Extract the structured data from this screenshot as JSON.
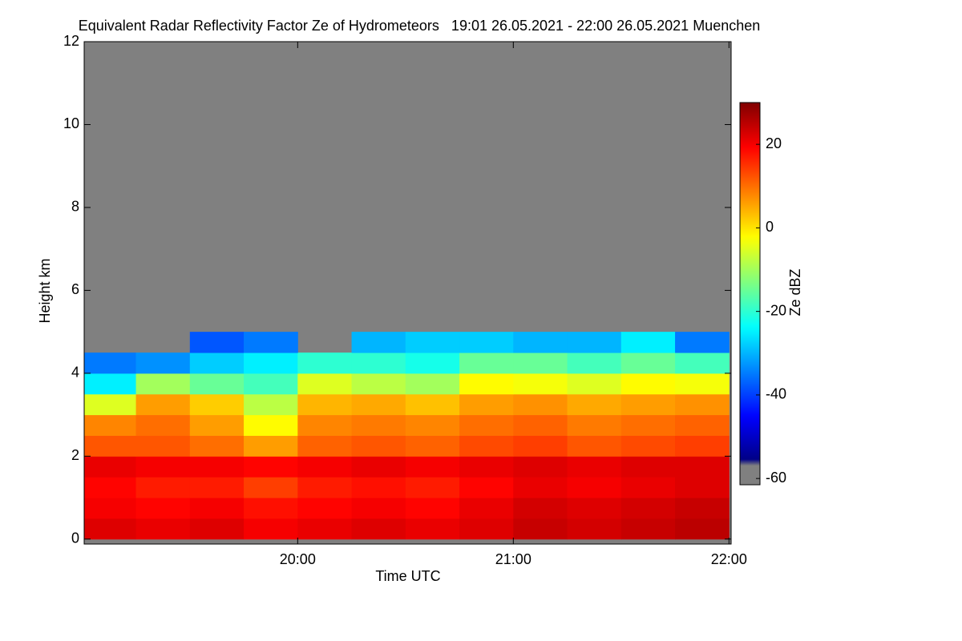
{
  "chart_data": {
    "type": "heatmap",
    "title": "Equivalent Radar Reflectivity Factor Ze of Hydrometeors   19:01 26.05.2021 - 22:00 26.05.2021 Muenchen",
    "xlabel": "Time UTC",
    "ylabel": "Height km",
    "colorbar_label": "Ze dBZ",
    "colormap": "jet",
    "missing_color": "#808080",
    "x": [
      19.125,
      19.375,
      19.625,
      19.875,
      20.125,
      20.375,
      20.625,
      20.875,
      21.125,
      21.375,
      21.625,
      21.875
    ],
    "y": [
      0.25,
      0.75,
      1.25,
      1.75,
      2.25,
      2.75,
      3.25,
      3.75,
      4.25,
      4.75
    ],
    "z": [
      [
        22,
        21,
        22,
        20,
        21,
        22,
        21,
        22,
        24,
        23,
        24,
        25
      ],
      [
        20,
        19,
        20,
        18,
        19,
        20,
        19,
        21,
        23,
        22,
        23,
        24
      ],
      [
        19,
        17,
        17,
        14,
        17,
        18,
        17,
        19,
        21,
        20,
        21,
        22
      ],
      [
        21,
        20,
        20,
        19,
        20,
        21,
        20,
        21,
        22,
        21,
        22,
        22
      ],
      [
        12,
        12,
        10,
        6,
        11,
        12,
        11,
        13,
        14,
        12,
        13,
        14
      ],
      [
        8,
        10,
        6,
        -2,
        8,
        9,
        8,
        10,
        11,
        9,
        10,
        11
      ],
      [
        -5,
        6,
        2,
        -8,
        4,
        5,
        3,
        6,
        7,
        5,
        6,
        7
      ],
      [
        -25,
        -10,
        -15,
        -18,
        -5,
        -8,
        -10,
        -2,
        -3,
        -5,
        -2,
        -3
      ],
      [
        -35,
        -33,
        -28,
        -25,
        -20,
        -20,
        -22,
        -15,
        -15,
        -18,
        -15,
        -18
      ],
      [
        null,
        null,
        -38,
        -35,
        null,
        -30,
        -28,
        -28,
        -30,
        -30,
        -25,
        -35
      ]
    ],
    "xlim": [
      19.01,
      22.01
    ],
    "xticks": [
      {
        "value": 20,
        "label": "20:00"
      },
      {
        "value": 21,
        "label": "21:00"
      },
      {
        "value": 22,
        "label": "22:00"
      }
    ],
    "ylim": [
      -0.12,
      12
    ],
    "yticks": [
      0,
      2,
      4,
      6,
      8,
      10,
      12
    ],
    "zlim": [
      -61.5,
      30
    ],
    "zticks": [
      -60,
      -40,
      -20,
      0,
      20
    ]
  }
}
